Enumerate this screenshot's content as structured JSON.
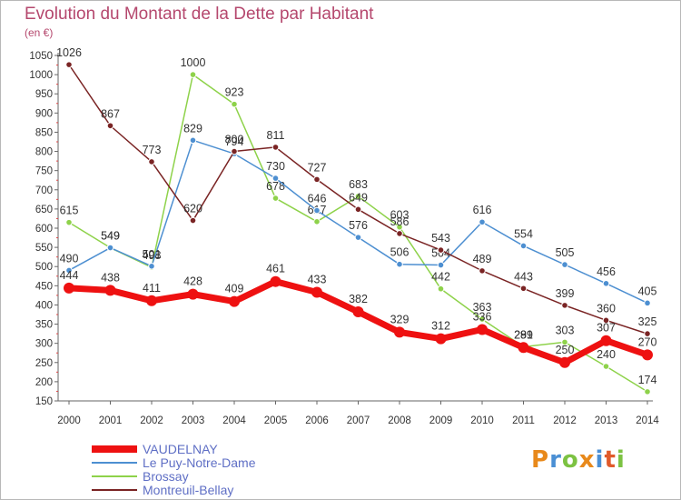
{
  "title": "Evolution du Montant de la Dette par Habitant",
  "unit": "(en €)",
  "logo": {
    "text": "Proxiti",
    "colors": [
      "#e8891b",
      "#4a8fd4",
      "#7cc242",
      "#e8891b",
      "#4a8fd4",
      "#e05a2b",
      "#7cc242"
    ]
  },
  "chart_data": {
    "type": "line",
    "x": [
      "2000",
      "2001",
      "2002",
      "2003",
      "2004",
      "2005",
      "2006",
      "2007",
      "2008",
      "2009",
      "2010",
      "2011",
      "2012",
      "2013",
      "2014"
    ],
    "ylim": [
      150,
      1050
    ],
    "yticks": [
      150,
      200,
      250,
      300,
      350,
      400,
      450,
      500,
      550,
      600,
      650,
      700,
      750,
      800,
      850,
      900,
      950,
      1000,
      1050
    ],
    "grid": false,
    "legend_position": "bottom-left",
    "series": [
      {
        "name": "Brossay",
        "color": "#8ed24a",
        "values": [
          615,
          549,
          498,
          1000,
          923,
          678,
          617,
          683,
          603,
          442,
          363,
          291,
          303,
          240,
          174
        ]
      },
      {
        "name": "Le Puy-Notre-Dame",
        "color": "#4d8fd1",
        "values": [
          490,
          549,
          501,
          829,
          794,
          730,
          646,
          576,
          506,
          504,
          616,
          554,
          505,
          456,
          405
        ]
      },
      {
        "name": "Montreuil-Bellay",
        "color": "#7a2424",
        "values": [
          1026,
          867,
          773,
          620,
          800,
          811,
          727,
          649,
          586,
          543,
          489,
          443,
          399,
          360,
          325
        ]
      },
      {
        "name": "VAUDELNAY",
        "color": "#ee1111",
        "values": [
          444,
          438,
          411,
          428,
          409,
          461,
          433,
          382,
          329,
          312,
          336,
          289,
          250,
          307,
          270
        ]
      }
    ],
    "legend": [
      "VAUDELNAY",
      "Le Puy-Notre-Dame",
      "Brossay",
      "Montreuil-Bellay"
    ]
  }
}
